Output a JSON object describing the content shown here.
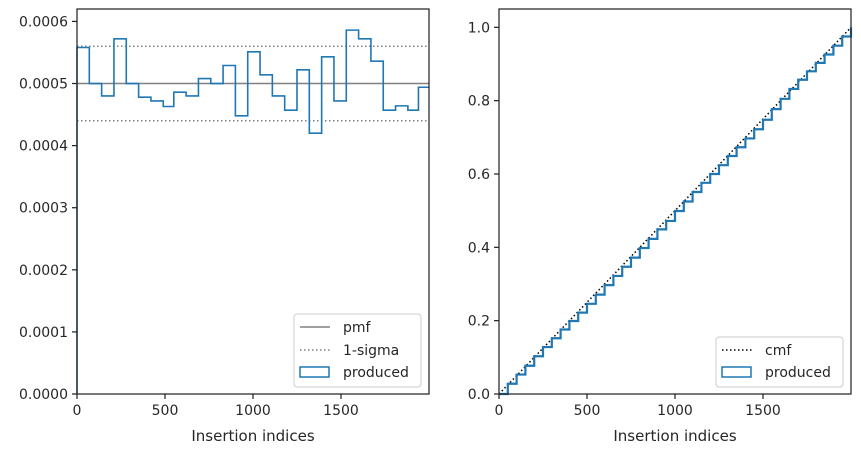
{
  "chart_data": [
    {
      "type": "line",
      "subtype": "step-histogram",
      "xlabel": "Insertion indices",
      "ylabel": "",
      "xlim": [
        0,
        2000
      ],
      "ylim": [
        0,
        0.00062
      ],
      "xticks": [
        0,
        500,
        1000,
        1500
      ],
      "xtick_labels": [
        "0",
        "500",
        "1000",
        "1500"
      ],
      "yticks": [
        0,
        0.0001,
        0.0002,
        0.0003,
        0.0004,
        0.0005,
        0.0006
      ],
      "ytick_labels": [
        "0.0000",
        "0.0001",
        "0.0002",
        "0.0003",
        "0.0004",
        "0.0005",
        "0.0006"
      ],
      "grid": false,
      "legend_position": "bottom-right",
      "series": [
        {
          "name": "pmf",
          "style": "solid",
          "color": "#808080",
          "x": [
            0,
            2000
          ],
          "y": [
            0.0005,
            0.0005
          ]
        },
        {
          "name": "1-sigma",
          "style": "dotted",
          "color": "#808080",
          "x": [
            0,
            2000
          ],
          "y": [
            0.00056,
            0.00056
          ]
        },
        {
          "name": "1-sigma",
          "style": "dotted",
          "color": "#808080",
          "x": [
            0,
            2000
          ],
          "y": [
            0.00044,
            0.00044
          ]
        },
        {
          "name": "produced",
          "style": "step",
          "color": "#1f77b4",
          "bin_edges": [
            0,
            70,
            140,
            210,
            280,
            350,
            420,
            490,
            550,
            620,
            690,
            760,
            830,
            900,
            970,
            1040,
            1110,
            1180,
            1250,
            1320,
            1390,
            1460,
            1530,
            1600,
            1670,
            1740,
            1810,
            1880,
            1940,
            2000
          ],
          "values": [
            0.000558,
            0.0005,
            0.00048,
            0.000572,
            0.0005,
            0.000478,
            0.000472,
            0.000463,
            0.000486,
            0.00048,
            0.000508,
            0.0005,
            0.000529,
            0.000448,
            0.000551,
            0.000514,
            0.00048,
            0.000457,
            0.000522,
            0.00042,
            0.000543,
            0.000472,
            0.000586,
            0.000572,
            0.000536,
            0.000457,
            0.000464,
            0.000457,
            0.000494
          ]
        }
      ]
    },
    {
      "type": "line",
      "subtype": "cumulative",
      "xlabel": "Insertion indices",
      "ylabel": "",
      "xlim": [
        0,
        2000
      ],
      "ylim": [
        0,
        1.05
      ],
      "xticks": [
        0,
        500,
        1000,
        1500
      ],
      "xtick_labels": [
        "0",
        "500",
        "1000",
        "1500"
      ],
      "yticks": [
        0,
        0.2,
        0.4,
        0.6,
        0.8,
        1.0
      ],
      "ytick_labels": [
        "0.0",
        "0.2",
        "0.4",
        "0.6",
        "0.8",
        "1.0"
      ],
      "grid": false,
      "legend_position": "bottom-right",
      "series": [
        {
          "name": "cmf",
          "style": "dotted",
          "color": "#000000",
          "x": [
            0,
            2000
          ],
          "y": [
            0,
            1.0
          ]
        },
        {
          "name": "produced",
          "style": "step",
          "color": "#1f77b4",
          "x": [
            0,
            50,
            100,
            150,
            200,
            250,
            300,
            350,
            400,
            450,
            500,
            550,
            600,
            650,
            700,
            750,
            800,
            850,
            900,
            950,
            1000,
            1050,
            1100,
            1150,
            1200,
            1250,
            1300,
            1350,
            1400,
            1450,
            1500,
            1550,
            1600,
            1650,
            1700,
            1750,
            1800,
            1850,
            1900,
            1950,
            2000
          ],
          "y": [
            0,
            0.028,
            0.053,
            0.077,
            0.103,
            0.128,
            0.152,
            0.176,
            0.199,
            0.222,
            0.246,
            0.271,
            0.297,
            0.322,
            0.347,
            0.372,
            0.398,
            0.423,
            0.449,
            0.472,
            0.499,
            0.525,
            0.551,
            0.576,
            0.6,
            0.624,
            0.649,
            0.673,
            0.697,
            0.722,
            0.748,
            0.777,
            0.805,
            0.832,
            0.857,
            0.88,
            0.903,
            0.926,
            0.95,
            0.975,
            1.0
          ]
        }
      ]
    }
  ],
  "legends": [
    {
      "items": [
        {
          "label": "pmf",
          "swatch": "solid-line",
          "color": "#808080"
        },
        {
          "label": "1-sigma",
          "swatch": "dotted-line",
          "color": "#808080"
        },
        {
          "label": "produced",
          "swatch": "box",
          "color": "#1f77b4"
        }
      ]
    },
    {
      "items": [
        {
          "label": "cmf",
          "swatch": "dotted-line",
          "color": "#000000"
        },
        {
          "label": "produced",
          "swatch": "box",
          "color": "#1f77b4"
        }
      ]
    }
  ]
}
